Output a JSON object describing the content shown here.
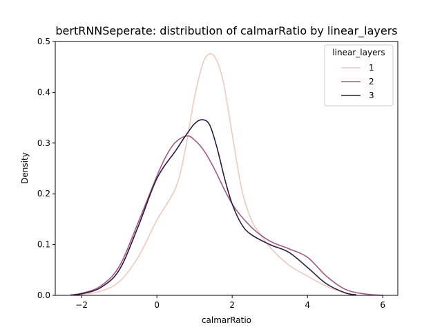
{
  "chart_data": {
    "type": "line",
    "title": "bertRNNSeperate: distribution of calmarRatio by linear_layers",
    "xlabel": "calmarRatio",
    "ylabel": "Density",
    "xlim": [
      -2.7,
      6.4
    ],
    "ylim": [
      0,
      0.5
    ],
    "xticks": [
      -2,
      0,
      2,
      4,
      6
    ],
    "xtick_labels": [
      "−2",
      "0",
      "2",
      "4",
      "6"
    ],
    "yticks": [
      0.0,
      0.1,
      0.2,
      0.3,
      0.4,
      0.5
    ],
    "ytick_labels": [
      "0.0",
      "0.1",
      "0.2",
      "0.3",
      "0.4",
      "0.5"
    ],
    "grid": false,
    "legend": {
      "title": "linear_layers",
      "placement": "top-right"
    },
    "series": [
      {
        "name": "1",
        "color": "#ecc9c3",
        "x": [
          -2.0,
          -1.5,
          -1.0,
          -0.5,
          0.0,
          0.5,
          0.75,
          1.0,
          1.25,
          1.5,
          1.75,
          2.0,
          2.25,
          2.5,
          2.75,
          3.0,
          3.5,
          4.0,
          4.5,
          5.0,
          5.3
        ],
        "y": [
          0.002,
          0.008,
          0.027,
          0.075,
          0.148,
          0.212,
          0.285,
          0.39,
          0.462,
          0.473,
          0.425,
          0.318,
          0.21,
          0.15,
          0.12,
          0.095,
          0.06,
          0.038,
          0.018,
          0.005,
          0.001
        ]
      },
      {
        "name": "2",
        "color": "#a05a85",
        "x": [
          -2.3,
          -2.0,
          -1.5,
          -1.0,
          -0.5,
          0.0,
          0.25,
          0.5,
          0.8,
          1.0,
          1.25,
          1.5,
          2.0,
          2.5,
          3.0,
          3.5,
          4.0,
          4.5,
          5.0,
          5.5,
          6.0
        ],
        "y": [
          0.001,
          0.004,
          0.018,
          0.057,
          0.143,
          0.235,
          0.275,
          0.302,
          0.314,
          0.306,
          0.285,
          0.253,
          0.18,
          0.135,
          0.107,
          0.092,
          0.075,
          0.038,
          0.012,
          0.003,
          0.0
        ]
      },
      {
        "name": "3",
        "color": "#2b1c3d",
        "x": [
          -2.2,
          -2.0,
          -1.5,
          -1.0,
          -0.5,
          0.0,
          0.5,
          0.75,
          1.0,
          1.2,
          1.4,
          1.6,
          1.8,
          2.0,
          2.25,
          2.5,
          3.0,
          3.5,
          4.0,
          4.5,
          5.0,
          5.3
        ],
        "y": [
          0.001,
          0.003,
          0.015,
          0.05,
          0.135,
          0.23,
          0.285,
          0.313,
          0.338,
          0.346,
          0.336,
          0.29,
          0.23,
          0.18,
          0.14,
          0.12,
          0.1,
          0.085,
          0.055,
          0.023,
          0.005,
          0.001
        ]
      }
    ]
  }
}
